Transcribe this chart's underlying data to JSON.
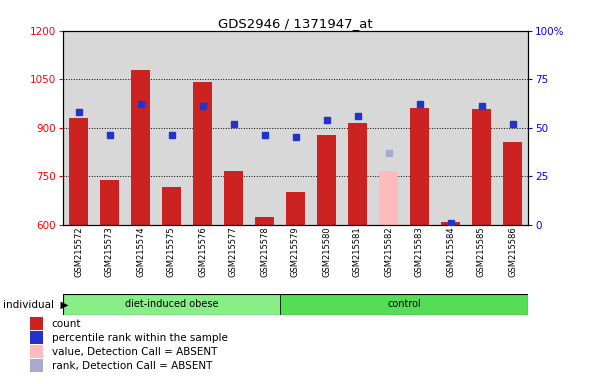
{
  "title": "GDS2946 / 1371947_at",
  "samples": [
    "GSM215572",
    "GSM215573",
    "GSM215574",
    "GSM215575",
    "GSM215576",
    "GSM215577",
    "GSM215578",
    "GSM215579",
    "GSM215580",
    "GSM215581",
    "GSM215582",
    "GSM215583",
    "GSM215584",
    "GSM215585",
    "GSM215586"
  ],
  "n_obese": 7,
  "n_control": 8,
  "count_values": [
    930,
    737,
    1080,
    718,
    1040,
    765,
    623,
    700,
    878,
    915,
    null,
    960,
    608,
    958,
    855
  ],
  "absent_count": [
    null,
    null,
    null,
    null,
    null,
    null,
    null,
    null,
    null,
    null,
    765,
    null,
    null,
    null,
    null
  ],
  "rank_values": [
    58,
    46,
    62,
    46,
    61,
    52,
    46,
    45,
    54,
    56,
    null,
    62,
    1,
    61,
    52
  ],
  "absent_rank": [
    null,
    null,
    null,
    null,
    null,
    null,
    null,
    null,
    null,
    null,
    37,
    null,
    null,
    null,
    null
  ],
  "ylim_left": [
    600,
    1200
  ],
  "ylim_right": [
    0,
    100
  ],
  "yticks_left": [
    600,
    750,
    900,
    1050,
    1200
  ],
  "yticks_right": [
    0,
    25,
    50,
    75,
    100
  ],
  "ytick_right_labels": [
    "0",
    "25",
    "50",
    "75",
    "100%"
  ],
  "hlines": [
    750,
    900,
    1050
  ],
  "bar_color": "#cc2222",
  "absent_bar_color": "#ffbbbb",
  "rank_color": "#2233cc",
  "absent_rank_color": "#aaaacc",
  "bg_color": "#d8d8d8",
  "obese_color": "#88ee88",
  "control_color": "#55dd55",
  "legend_items": [
    {
      "label": "count",
      "color": "#cc2222"
    },
    {
      "label": "percentile rank within the sample",
      "color": "#2233cc"
    },
    {
      "label": "value, Detection Call = ABSENT",
      "color": "#ffbbbb"
    },
    {
      "label": "rank, Detection Call = ABSENT",
      "color": "#aaaacc"
    }
  ]
}
